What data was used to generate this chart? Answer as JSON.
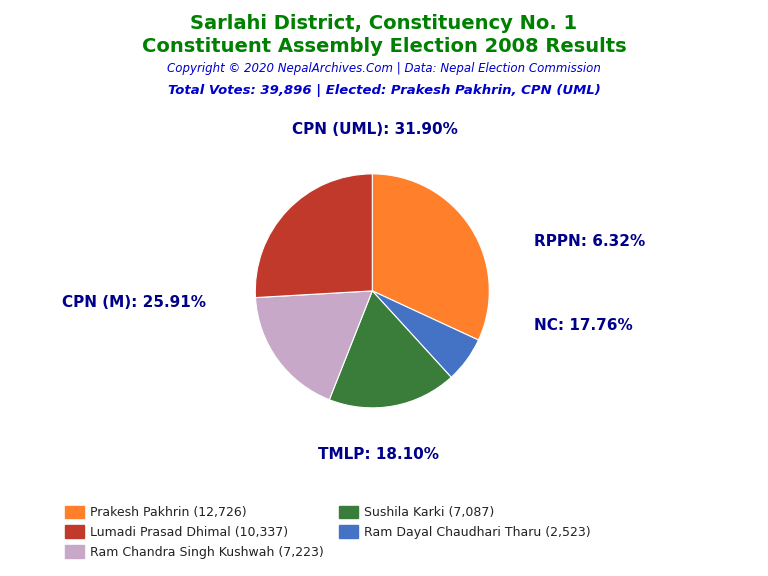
{
  "title_line1": "Sarlahi District, Constituency No. 1",
  "title_line2": "Constituent Assembly Election 2008 Results",
  "title_color": "#008000",
  "copyright_text": "Copyright © 2020 NepalArchives.Com | Data: Nepal Election Commission",
  "copyright_color": "#0000CD",
  "total_votes_text": "Total Votes: 39,896 | Elected: Prakesh Pakhrin, CPN (UML)",
  "total_votes_color": "#0000CD",
  "slices": [
    {
      "label": "CPN (UML): 31.90%",
      "value": 31.9,
      "color": "#FF7F2A",
      "party": "CPN (UML)"
    },
    {
      "label": "RPPN: 6.32%",
      "value": 6.32,
      "color": "#4472C4",
      "party": "RPPN"
    },
    {
      "label": "NC: 17.76%",
      "value": 17.76,
      "color": "#3A7D3A",
      "party": "NC"
    },
    {
      "label": "TMLP: 18.10%",
      "value": 18.1,
      "color": "#C8A8C8",
      "party": "TMLP"
    },
    {
      "label": "CPN (M): 25.91%",
      "value": 25.91,
      "color": "#C0392B",
      "party": "CPN (M)"
    }
  ],
  "label_color": "#00008B",
  "label_fontsize": 11,
  "legend_entries": [
    {
      "name": "Prakesh Pakhrin (12,726)",
      "color": "#FF7F2A"
    },
    {
      "name": "Lumadi Prasad Dhimal (10,337)",
      "color": "#C0392B"
    },
    {
      "name": "Ram Chandra Singh Kushwah (7,223)",
      "color": "#C8A8C8"
    },
    {
      "name": "Sushila Karki (7,087)",
      "color": "#3A7D3A"
    },
    {
      "name": "Ram Dayal Chaudhari Tharu (2,523)",
      "color": "#4472C4"
    }
  ],
  "background_color": "#FFFFFF"
}
